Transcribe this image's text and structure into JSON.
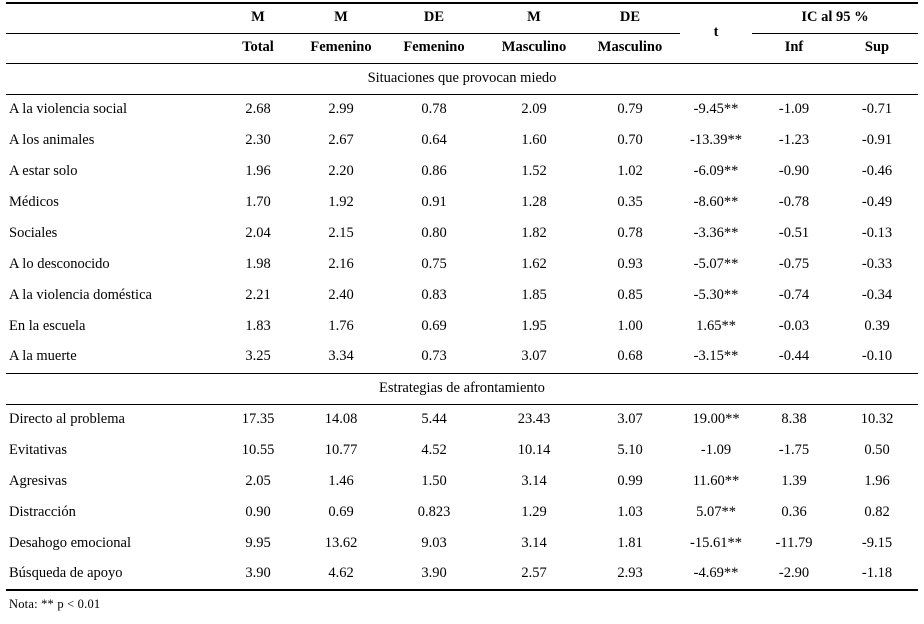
{
  "table": {
    "header_row1": {
      "cols": [
        "M",
        "M",
        "DE",
        "M",
        "DE"
      ],
      "t": "t",
      "ic": "IC al 95 %"
    },
    "header_row2": {
      "cols": [
        "Total",
        "Femenino",
        "Femenino",
        "Masculino",
        "Masculino"
      ],
      "inf": "Inf",
      "sup": "Sup"
    },
    "sections": [
      {
        "title": "Situaciones que provocan miedo",
        "rows": [
          {
            "label": "A la violencia social",
            "values": [
              "2.68",
              "2.99",
              "0.78",
              "2.09",
              "0.79",
              "-9.45**",
              "-1.09",
              "-0.71"
            ]
          },
          {
            "label": "A los animales",
            "values": [
              "2.30",
              "2.67",
              "0.64",
              "1.60",
              "0.70",
              "-13.39**",
              "-1.23",
              "-0.91"
            ]
          },
          {
            "label": "A estar solo",
            "values": [
              "1.96",
              "2.20",
              "0.86",
              "1.52",
              "1.02",
              "-6.09**",
              "-0.90",
              "-0.46"
            ]
          },
          {
            "label": "Médicos",
            "values": [
              "1.70",
              "1.92",
              "0.91",
              "1.28",
              "0.35",
              "-8.60**",
              "-0.78",
              "-0.49"
            ]
          },
          {
            "label": "Sociales",
            "values": [
              "2.04",
              "2.15",
              "0.80",
              "1.82",
              "0.78",
              "-3.36**",
              "-0.51",
              "-0.13"
            ]
          },
          {
            "label": "A lo desconocido",
            "values": [
              "1.98",
              "2.16",
              "0.75",
              "1.62",
              "0.93",
              "-5.07**",
              "-0.75",
              "-0.33"
            ]
          },
          {
            "label": "A la violencia doméstica",
            "values": [
              "2.21",
              "2.40",
              "0.83",
              "1.85",
              "0.85",
              "-5.30**",
              "-0.74",
              "-0.34"
            ]
          },
          {
            "label": "En la escuela",
            "values": [
              "1.83",
              "1.76",
              "0.69",
              "1.95",
              "1.00",
              "1.65**",
              "-0.03",
              "0.39"
            ]
          },
          {
            "label": "A la muerte",
            "values": [
              "3.25",
              "3.34",
              "0.73",
              "3.07",
              "0.68",
              "-3.15**",
              "-0.44",
              "-0.10"
            ]
          }
        ]
      },
      {
        "title": "Estrategias de afrontamiento",
        "rows": [
          {
            "label": "Directo al problema",
            "values": [
              "17.35",
              "14.08",
              "5.44",
              "23.43",
              "3.07",
              "19.00**",
              "8.38",
              "10.32"
            ]
          },
          {
            "label": "Evitativas",
            "values": [
              "10.55",
              "10.77",
              "4.52",
              "10.14",
              "5.10",
              "-1.09",
              "-1.75",
              "0.50"
            ]
          },
          {
            "label": "Agresivas",
            "values": [
              "2.05",
              "1.46",
              "1.50",
              "3.14",
              "0.99",
              "11.60**",
              "1.39",
              "1.96"
            ]
          },
          {
            "label": "Distracción",
            "values": [
              "0.90",
              "0.69",
              "0.823",
              "1.29",
              "1.03",
              "5.07**",
              "0.36",
              "0.82"
            ]
          },
          {
            "label": "Desahogo emocional",
            "values": [
              "9.95",
              "13.62",
              "9.03",
              "3.14",
              "1.81",
              "-15.61**",
              "-11.79",
              "-9.15"
            ]
          },
          {
            "label": "Búsqueda de apoyo",
            "values": [
              "3.90",
              "4.62",
              "3.90",
              "2.57",
              "2.93",
              "-4.69**",
              "-2.90",
              "-1.18"
            ]
          }
        ]
      }
    ],
    "note": "Nota: ** p < 0.01"
  }
}
